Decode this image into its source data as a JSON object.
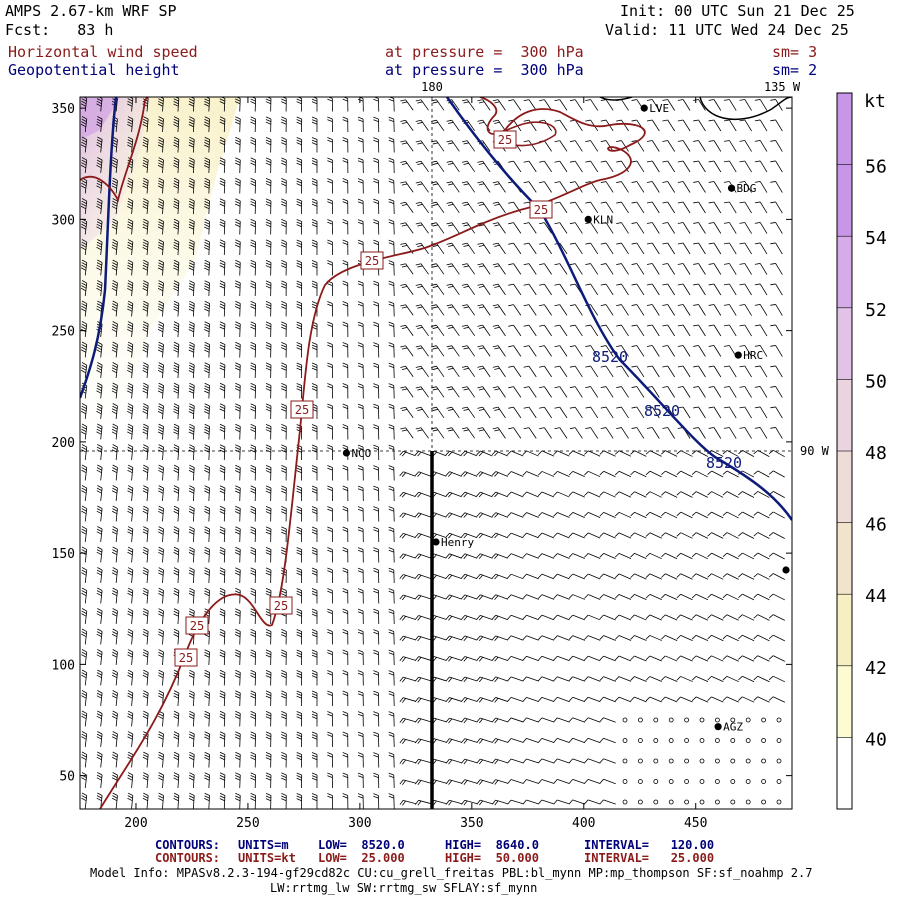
{
  "header": {
    "model": "AMPS 2.67-km WRF SP",
    "forecast": "Fcst:   83 h",
    "init": "Init: 00 UTC Sun 21 Dec 25",
    "valid": "Valid: 11 UTC Wed 24 Dec 25",
    "field1": "Horizontal wind speed",
    "field2": "Geopotential height",
    "level1": "at pressure =  300 hPa",
    "level2": "at pressure =  300 hPa",
    "sm1": "sm= 3",
    "sm2": "sm= 2"
  },
  "map": {
    "x_ticks": [
      200,
      250,
      300,
      350,
      400,
      450
    ],
    "y_ticks": [
      50,
      100,
      150,
      200,
      250,
      300,
      350
    ],
    "xlim": [
      175,
      493
    ],
    "ylim": [
      35,
      355
    ],
    "lon_labels": {
      "top_left": "180",
      "top_right": "135 W",
      "right": "90 W"
    },
    "stations": [
      "LVE",
      "BDG",
      "KLN",
      "HRC",
      "NCO",
      "Henry",
      "AGZ"
    ],
    "height_contour_label": "8520",
    "speed_contour_label": "25",
    "barb_color": "#000000",
    "height_color": "#0d1b7a",
    "speed_color": "#8b1a1a"
  },
  "colorbar": {
    "unit": "kt",
    "labels": [
      "40",
      "42",
      "44",
      "46",
      "48",
      "50",
      "52",
      "54",
      "56"
    ],
    "colors": [
      "#ffffff",
      "#fdfbd2",
      "#f7efc4",
      "#f1e3cc",
      "#eddcd8",
      "#ebd4e0",
      "#e2c2e6",
      "#d6ace8",
      "#c896e8"
    ]
  },
  "footer": {
    "c1_head": "CONTOURS:",
    "c1_units": "UNITS=m",
    "c1_low": "LOW=  8520.0",
    "c1_high": "HIGH=  8640.0",
    "c1_interval": "INTERVAL=   120.00",
    "c2_head": "CONTOURS:",
    "c2_units": "UNITS=kt",
    "c2_low": "LOW=  25.000",
    "c2_high": "HIGH=  50.000",
    "c2_interval": "INTERVAL=   25.000",
    "model_info1": "Model Info: MPASv8.2.3-194-gf29cd82c CU:cu_grell_freitas PBL:bl_mynn MP:mp_thompson SF:sf_noahmp 2.7",
    "model_info2": "LW:rrtmg_lw SW:rrtmg_sw SFLAY:sf_mynn",
    "c1_color": "#00007a",
    "c2_color": "#8b1a1a"
  }
}
